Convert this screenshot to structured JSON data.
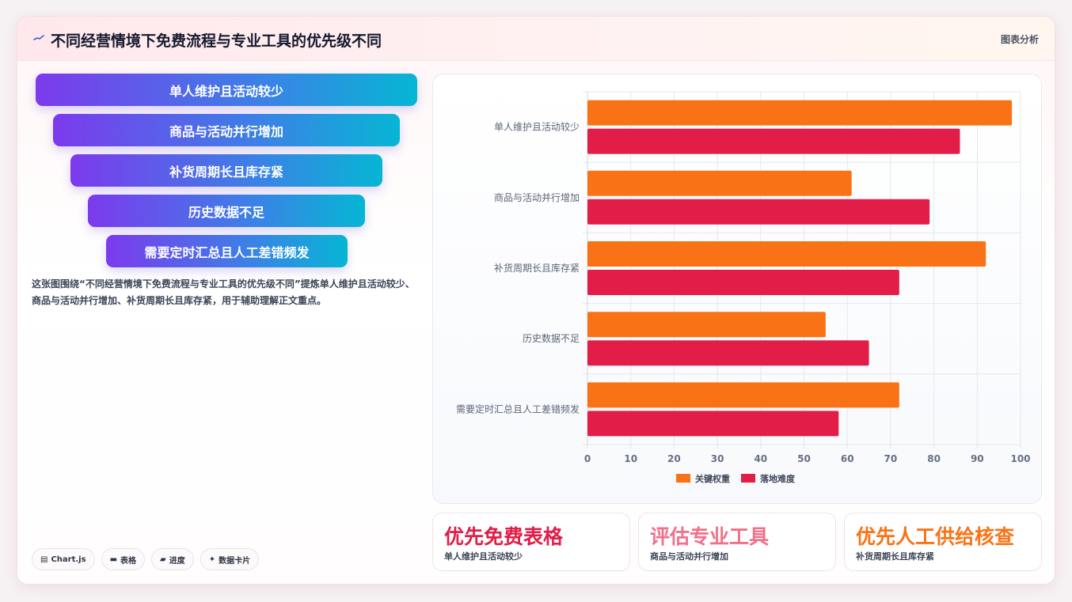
{
  "header": {
    "title": "不同经营情境下免费流程与专业工具的优先级不同",
    "tag": "图表分析"
  },
  "funnel": [
    "单人维护且活动较少",
    "商品与活动并行增加",
    "补货周期长且库存紧",
    "历史数据不足",
    "需要定时汇总且人工差错频发"
  ],
  "description": "这张图围绕“不同经营情境下免费流程与专业工具的优先级不同”提炼单人维护且活动较少、商品与活动并行增加、补货周期长且库存紧，用于辅助理解正文重点。",
  "chips": [
    {
      "icon": "chart-icon",
      "label": "Chart.js"
    },
    {
      "icon": "table-icon",
      "label": "表格"
    },
    {
      "icon": "progress-icon",
      "label": "进度"
    },
    {
      "icon": "sparkle-icon",
      "label": "数据卡片"
    }
  ],
  "chart_data": {
    "type": "bar",
    "orientation": "horizontal",
    "categories": [
      "单人维护且活动较少",
      "商品与活动并行增加",
      "补货周期长且库存紧",
      "历史数据不足",
      "需要定时汇总且人工差错频发"
    ],
    "series": [
      {
        "name": "关键权重",
        "color": "#f97316",
        "values": [
          98,
          61,
          92,
          55,
          72
        ]
      },
      {
        "name": "落地难度",
        "color": "#e11d48",
        "values": [
          86,
          79,
          72,
          65,
          58
        ]
      }
    ],
    "xlim": [
      0,
      100
    ],
    "xticks": [
      0,
      10,
      20,
      30,
      40,
      50,
      60,
      70,
      80,
      90,
      100
    ],
    "grid": true,
    "legend": "bottom"
  },
  "stats": [
    {
      "value": "优先免费表格",
      "label": "单人维护且活动较少",
      "color": "#e11d48"
    },
    {
      "value": "评估专业工具",
      "label": "商品与活动并行增加",
      "color": "#f0708a"
    },
    {
      "value": "优先人工供给核查",
      "label": "补货周期长且库存紧",
      "color": "#f97316"
    }
  ]
}
